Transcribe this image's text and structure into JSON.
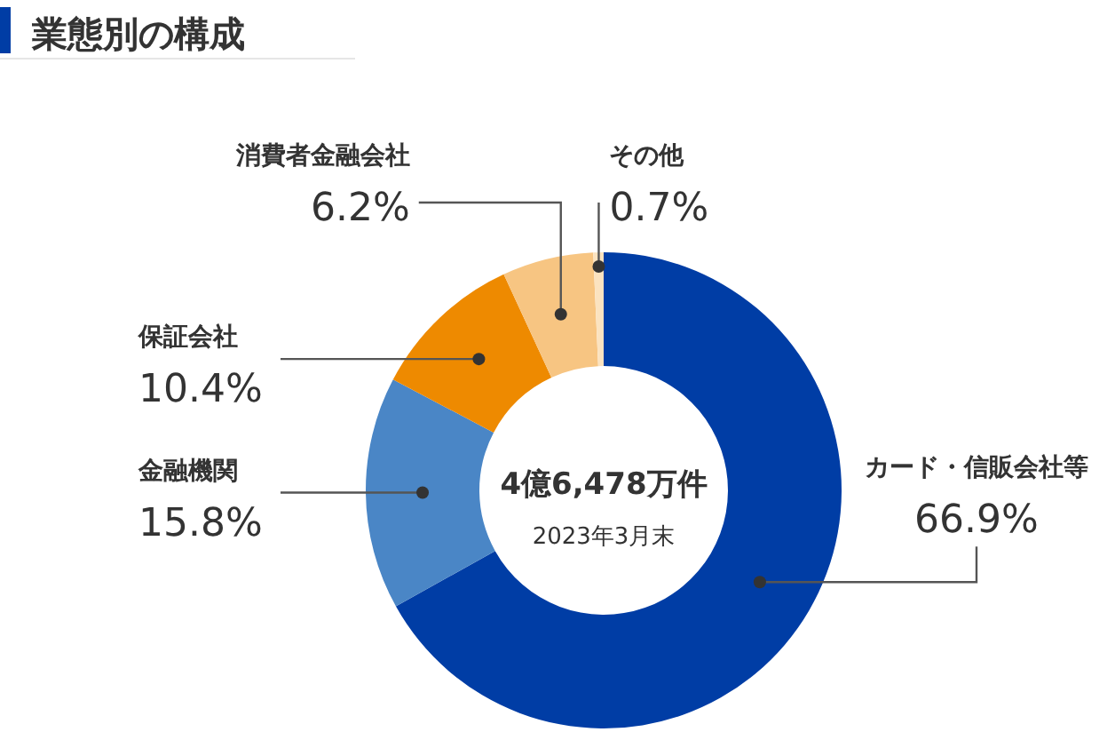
{
  "chart_data": {
    "type": "donut",
    "title": "業態別の構成",
    "categories": [
      "カード・信販会社等",
      "金融機関",
      "保証会社",
      "消費者金融会社",
      "その他"
    ],
    "values": [
      66.9,
      15.8,
      10.4,
      6.2,
      0.7
    ],
    "value_labels": [
      "66.9%",
      "15.8%",
      "10.4%",
      "6.2%",
      "0.7%"
    ],
    "colors": [
      "#003da5",
      "#4a86c6",
      "#ee8a00",
      "#f7c582",
      "#fbe3c0"
    ],
    "annotations": [
      "4億6,478万件",
      "2023年3月末"
    ],
    "legend": false
  }
}
